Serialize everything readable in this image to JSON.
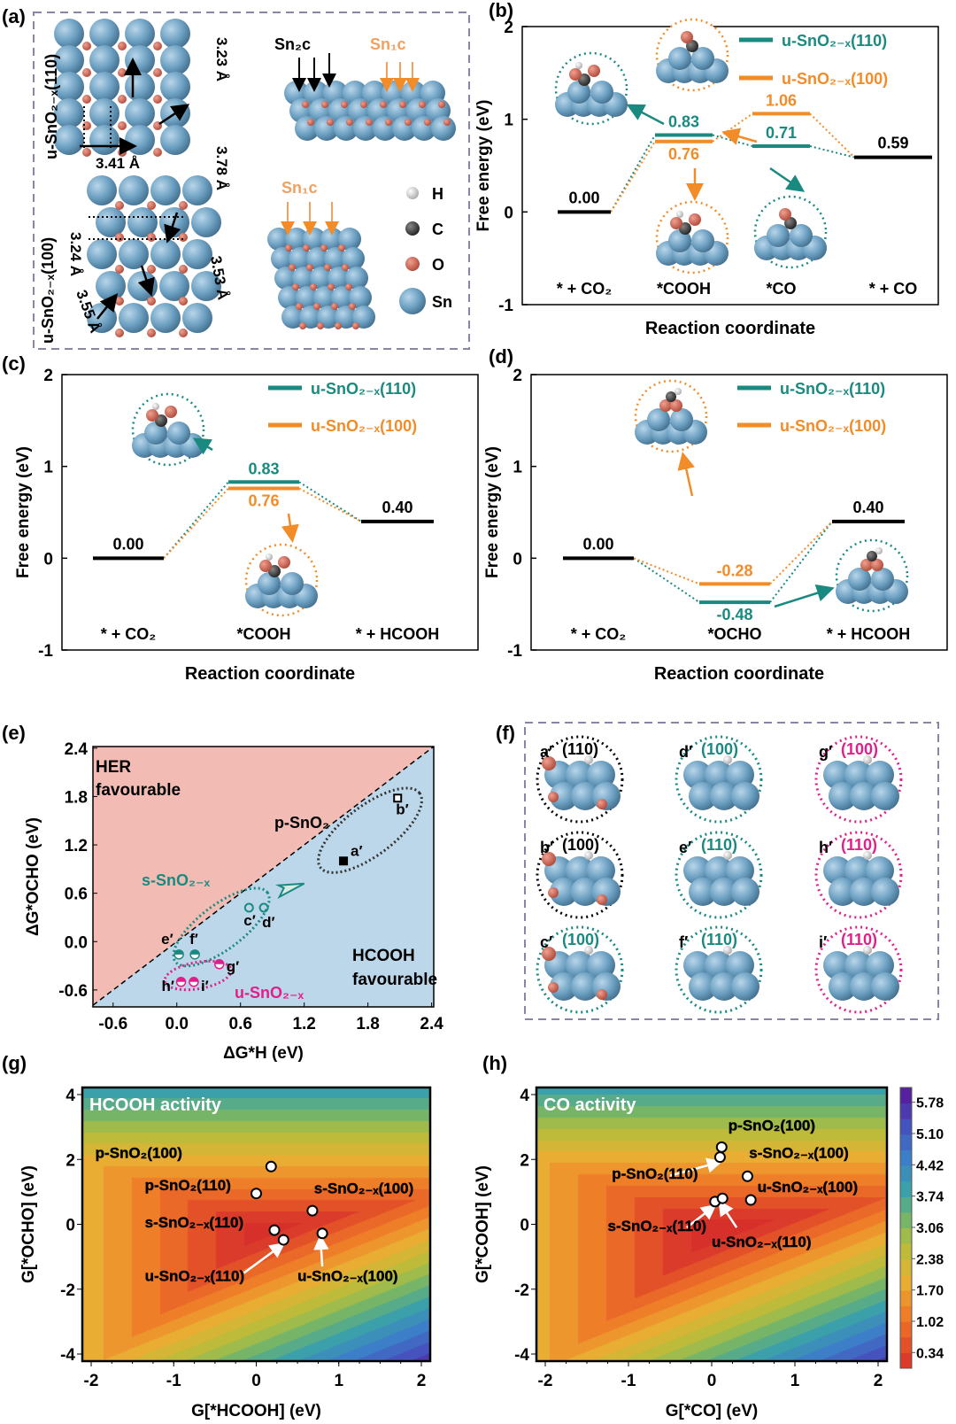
{
  "panel_labels": [
    "(a)",
    "(b)",
    "(c)",
    "(d)",
    "(e)",
    "(f)",
    "(g)",
    "(h)"
  ],
  "panel_a": {
    "row_labels": [
      "u-SnO₂₋ₓ(110)",
      "u-SnO₂₋ₓ(100)"
    ],
    "distances": [
      "3.23 Å",
      "3.78 Å",
      "3.41 Å",
      "3.24 Å",
      "3.53 Å",
      "3.55 Å"
    ],
    "site_labels": [
      "Sn₂c",
      "Sn₁c",
      "Sn₁c"
    ],
    "legend": [
      {
        "label": "H",
        "color": "#e8e8e8"
      },
      {
        "label": "C",
        "color": "#404040"
      },
      {
        "label": "O",
        "color": "#c8604e"
      },
      {
        "label": "Sn",
        "color": "#6a9ec0"
      }
    ]
  },
  "colors": {
    "teal": "#1a8a80",
    "orange": "#f28c28",
    "magenta": "#e0208a",
    "black": "#000000",
    "her_region": "#f2bcb4",
    "hcooh_region": "#bcd6ea"
  },
  "chart_data": [
    {
      "panel": "(b)",
      "type": "line",
      "xlabel": "Reaction coordinate",
      "ylabel": "Free energy (eV)",
      "ylim": [
        -1,
        2
      ],
      "yticks": [
        "-1",
        "0",
        "1",
        "2"
      ],
      "states": [
        "* + CO₂",
        "*COOH",
        "*CO",
        "* + CO"
      ],
      "series": [
        {
          "name": "u-SnO₂₋ₓ(110)",
          "color": "#1a8a80",
          "values": [
            0.0,
            0.83,
            0.71,
            0.59
          ],
          "value_labels": [
            "0.00",
            "0.83",
            "0.71",
            "0.59"
          ]
        },
        {
          "name": "u-SnO₂₋ₓ(100)",
          "color": "#f28c28",
          "values": [
            0.0,
            0.76,
            1.06,
            0.59
          ],
          "value_labels": [
            "0.00",
            "0.76",
            "1.06",
            "0.59"
          ]
        }
      ]
    },
    {
      "panel": "(c)",
      "type": "line",
      "xlabel": "Reaction coordinate",
      "ylabel": "Free energy (eV)",
      "ylim": [
        -1,
        2
      ],
      "yticks": [
        "-1",
        "0",
        "1",
        "2"
      ],
      "states": [
        "* + CO₂",
        "*COOH",
        "* + HCOOH"
      ],
      "series": [
        {
          "name": "u-SnO₂₋ₓ(110)",
          "color": "#1a8a80",
          "values": [
            0.0,
            0.83,
            0.4
          ],
          "value_labels": [
            "0.00",
            "0.83",
            "0.40"
          ]
        },
        {
          "name": "u-SnO₂₋ₓ(100)",
          "color": "#f28c28",
          "values": [
            0.0,
            0.76,
            0.4
          ],
          "value_labels": [
            "0.00",
            "0.76",
            "0.40"
          ]
        }
      ]
    },
    {
      "panel": "(d)",
      "type": "line",
      "xlabel": "Reaction coordinate",
      "ylabel": "Free energy (eV)",
      "ylim": [
        -1,
        2
      ],
      "yticks": [
        "-1",
        "0",
        "1",
        "2"
      ],
      "states": [
        "* + CO₂",
        "*OCHO",
        "* + HCOOH"
      ],
      "series": [
        {
          "name": "u-SnO₂₋ₓ(110)",
          "color": "#1a8a80",
          "values": [
            0.0,
            -0.48,
            0.4
          ],
          "value_labels": [
            "0.00",
            "-0.48",
            "0.40"
          ]
        },
        {
          "name": "u-SnO₂₋ₓ(100)",
          "color": "#f28c28",
          "values": [
            0.0,
            -0.28,
            0.4
          ],
          "value_labels": [
            "0.00",
            "-0.28",
            "0.40"
          ]
        }
      ]
    },
    {
      "panel": "(e)",
      "type": "scatter",
      "xlabel": "ΔG*H (eV)",
      "ylabel": "ΔG*OCHO (eV)",
      "xlim": [
        -0.79,
        2.42
      ],
      "ylim": [
        -0.81,
        2.42
      ],
      "xticks": [
        "-0.6",
        "0.0",
        "0.6",
        "1.2",
        "1.8",
        "2.4"
      ],
      "yticks": [
        "-0.6",
        "0.0",
        "0.6",
        "1.2",
        "1.8",
        "2.4"
      ],
      "regions": [
        "HER favourable",
        "HCOOH favourable"
      ],
      "groups": [
        {
          "name": "p-SnO₂",
          "color": "#000000",
          "points": [
            {
              "label": "a′",
              "x": 1.57,
              "y": 1.0,
              "marker": "filled-square"
            },
            {
              "label": "b′",
              "x": 2.08,
              "y": 1.78,
              "marker": "open-square"
            }
          ]
        },
        {
          "name": "s-SnO₂₋ₓ",
          "color": "#1a8a80",
          "points": [
            {
              "label": "c′",
              "x": 0.68,
              "y": 0.42,
              "marker": "open-circle"
            },
            {
              "label": "d′",
              "x": 0.82,
              "y": 0.42,
              "marker": "open-circle"
            },
            {
              "label": "e′",
              "x": 0.02,
              "y": -0.16,
              "marker": "half-circle"
            },
            {
              "label": "f′",
              "x": 0.17,
              "y": -0.16,
              "marker": "half-circle"
            }
          ]
        },
        {
          "name": "u-SnO₂₋ₓ",
          "color": "#e0208a",
          "points": [
            {
              "label": "g′",
              "x": 0.4,
              "y": -0.28,
              "marker": "half-circle"
            },
            {
              "label": "h′",
              "x": 0.04,
              "y": -0.5,
              "marker": "half-circle"
            },
            {
              "label": "i′",
              "x": 0.16,
              "y": -0.5,
              "marker": "half-circle"
            }
          ]
        }
      ]
    },
    {
      "panel": "(g)",
      "type": "heatmap",
      "title": "HCOOH activity",
      "xlabel": "G[*HCOOH] (eV)",
      "ylabel": "G[*OCHO] (eV)",
      "xlim": [
        -2,
        2
      ],
      "ylim": [
        -4,
        4
      ],
      "xticks": [
        "-2",
        "-1",
        "0",
        "1",
        "2"
      ],
      "yticks": [
        "-4",
        "-2",
        "0",
        "2",
        "4"
      ],
      "points": [
        {
          "label": "p-SnO₂(100)",
          "x": 0.18,
          "y": 1.78
        },
        {
          "label": "p-SnO₂(110)",
          "x": 0.0,
          "y": 0.95
        },
        {
          "label": "s-SnO₂₋ₓ(100)",
          "x": 0.68,
          "y": 0.42
        },
        {
          "label": "s-SnO₂₋ₓ(110)",
          "x": 0.22,
          "y": -0.18
        },
        {
          "label": "u-SnO₂₋ₓ(110)",
          "x": 0.33,
          "y": -0.48
        },
        {
          "label": "u-SnO₂₋ₓ(100)",
          "x": 0.8,
          "y": -0.28
        }
      ]
    },
    {
      "panel": "(h)",
      "type": "heatmap",
      "title": "CO activity",
      "xlabel": "G[*CO] (eV)",
      "ylabel": "G[*COOH] (eV)",
      "xlim": [
        -2,
        2
      ],
      "ylim": [
        -4,
        4
      ],
      "xticks": [
        "-2",
        "-1",
        "0",
        "1",
        "2"
      ],
      "yticks": [
        "-4",
        "-2",
        "0",
        "2",
        "4"
      ],
      "points": [
        {
          "label": "p-SnO₂(100)",
          "x": 0.12,
          "y": 2.38
        },
        {
          "label": "p-SnO₂(110)",
          "x": 0.1,
          "y": 2.07
        },
        {
          "label": "s-SnO₂₋ₓ(100)",
          "x": 0.43,
          "y": 1.48
        },
        {
          "label": "u-SnO₂₋ₓ(100)",
          "x": 0.47,
          "y": 0.75
        },
        {
          "label": "s-SnO₂₋ₓ(110)",
          "x": 0.04,
          "y": 0.7
        },
        {
          "label": "u-SnO₂₋ₓ(110)",
          "x": 0.13,
          "y": 0.8
        }
      ],
      "colorbar": {
        "ticks": [
          "5.78",
          "5.10",
          "4.42",
          "3.74",
          "3.06",
          "2.38",
          "1.70",
          "1.02",
          "0.34"
        ],
        "range": [
          0.0,
          6.1
        ]
      }
    }
  ],
  "panel_f": {
    "items": [
      {
        "id": "a′",
        "facet": "(110)",
        "color": "#000000"
      },
      {
        "id": "d′",
        "facet": "(100)",
        "color": "#1a8a80"
      },
      {
        "id": "g′",
        "facet": "(100)",
        "color": "#e0208a"
      },
      {
        "id": "b′",
        "facet": "(100)",
        "color": "#000000"
      },
      {
        "id": "e′",
        "facet": "(110)",
        "color": "#1a8a80"
      },
      {
        "id": "h′",
        "facet": "(110)",
        "color": "#e0208a"
      },
      {
        "id": "c′",
        "facet": "(100)",
        "color": "#1a8a80"
      },
      {
        "id": "f′",
        "facet": "(110)",
        "color": "#1a8a80"
      },
      {
        "id": "i′",
        "facet": "(110)",
        "color": "#e0208a"
      }
    ]
  }
}
